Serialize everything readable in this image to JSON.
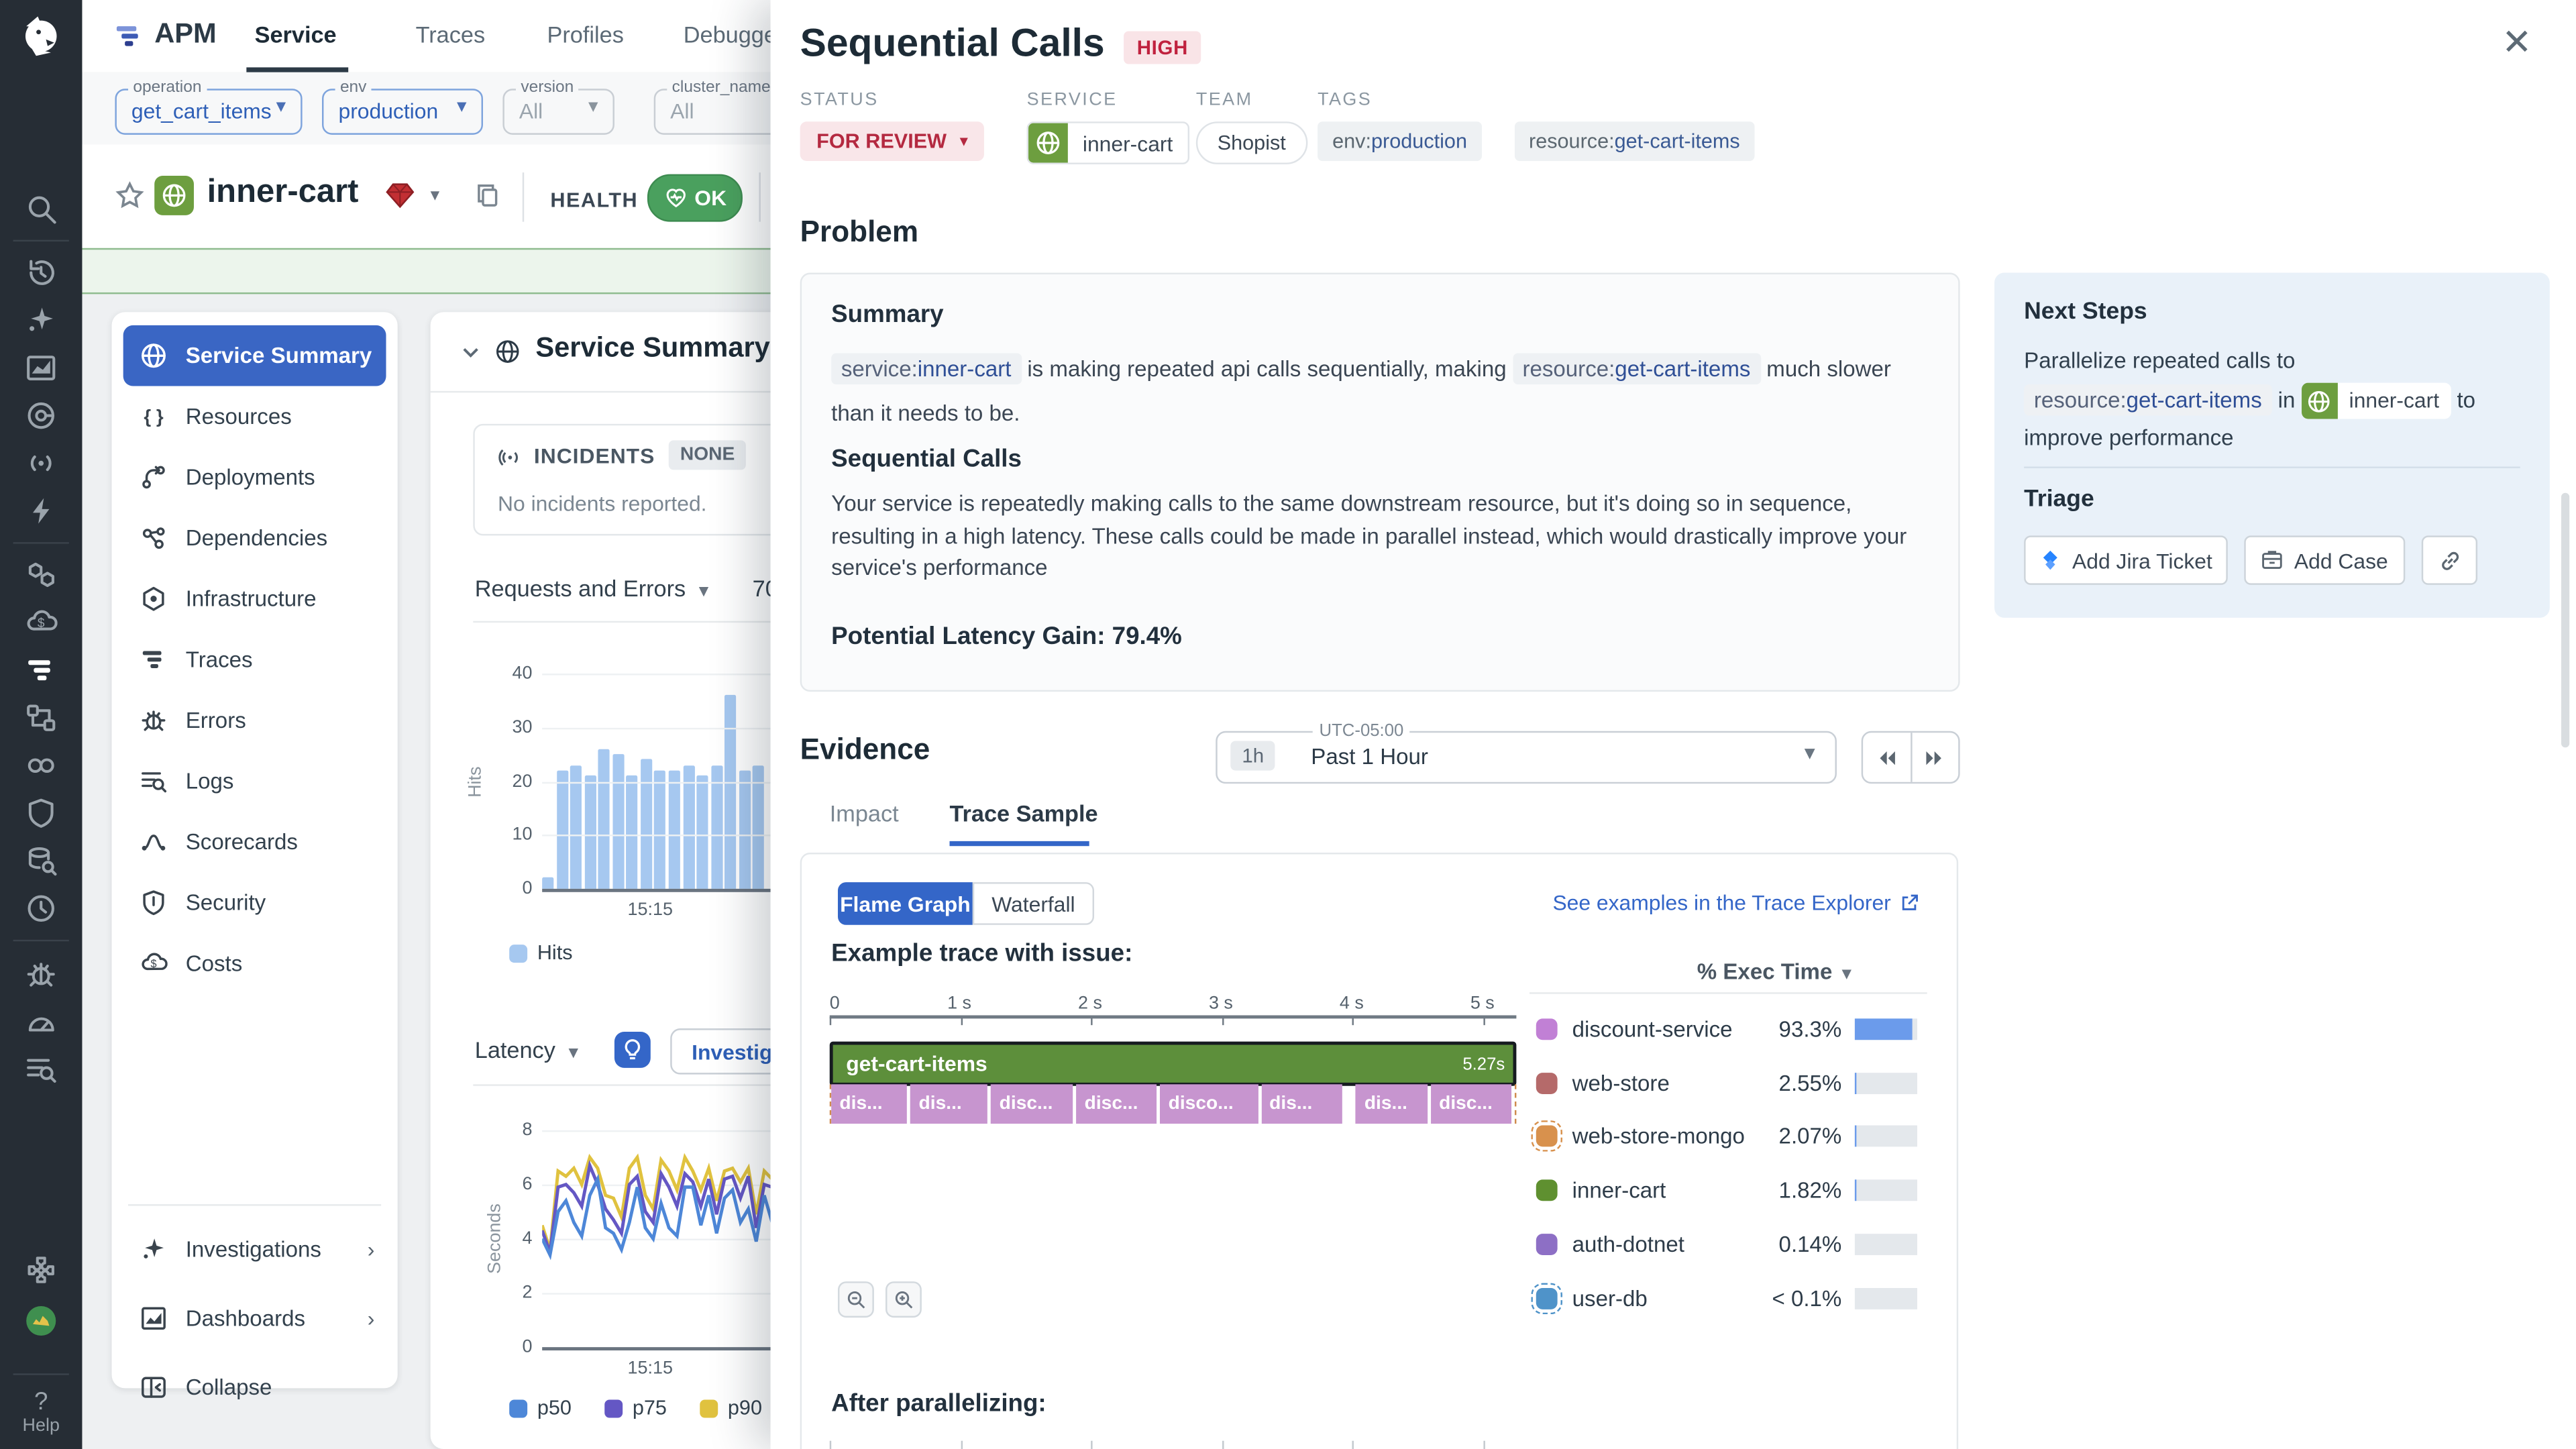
{
  "colors": {
    "accent_blue": "#3466c8",
    "sidebar_active": "#3a66c4",
    "severity_bg": "#f9e4e7",
    "severity_text": "#c0223f",
    "service_green": "#6d9e3f",
    "ok_green": "#4aa05e",
    "banner_green": "#ecf5ec"
  },
  "nav_rail": {
    "icons": [
      "search",
      "history",
      "sparkle",
      "metrics",
      "cicd",
      "rum",
      "bolt",
      "infrastructure",
      "cost",
      "apm",
      "servicemap",
      "synthetics",
      "security",
      "database",
      "servicemgmt",
      "bug",
      "profiling",
      "logs",
      "integrations",
      "avatar"
    ],
    "help_label": "Help"
  },
  "header": {
    "app": "APM",
    "tabs": [
      {
        "label": "Service",
        "active": true
      },
      {
        "label": "Traces",
        "active": false
      },
      {
        "label": "Profiles",
        "active": false
      },
      {
        "label": "Debugger",
        "active": false
      }
    ],
    "filters": [
      {
        "label": "operation",
        "value": "get_cart_items",
        "accent": true,
        "caret": true
      },
      {
        "label": "env",
        "value": "production",
        "accent": true,
        "caret": true
      },
      {
        "label": "version",
        "value": "All",
        "accent": false,
        "caret": true
      },
      {
        "label": "cluster_name",
        "value": "All",
        "accent": false,
        "caret": false
      }
    ]
  },
  "service_header": {
    "name": "inner-cart",
    "health_label": "HEALTH",
    "health_status": "OK"
  },
  "sidebar": {
    "items": [
      {
        "icon": "globe",
        "label": "Service Summary",
        "active": true
      },
      {
        "icon": "braces",
        "label": "Resources",
        "active": false
      },
      {
        "icon": "deploy",
        "label": "Deployments",
        "active": false
      },
      {
        "icon": "deps",
        "label": "Dependencies",
        "active": false
      },
      {
        "icon": "infra",
        "label": "Infrastructure",
        "active": false
      },
      {
        "icon": "traces",
        "label": "Traces",
        "active": false
      },
      {
        "icon": "bug",
        "label": "Errors",
        "active": false
      },
      {
        "icon": "logs",
        "label": "Logs",
        "active": false
      },
      {
        "icon": "score",
        "label": "Scorecards",
        "active": false
      },
      {
        "icon": "shield",
        "label": "Security",
        "active": false
      },
      {
        "icon": "cost",
        "label": "Costs",
        "active": false
      }
    ],
    "footer": [
      {
        "icon": "sparkle",
        "label": "Investigations",
        "chevron": true
      },
      {
        "icon": "dash",
        "label": "Dashboards",
        "chevron": true
      },
      {
        "icon": "collapse",
        "label": "Collapse",
        "chevron": false
      }
    ]
  },
  "summary_panel": {
    "title": "Service Summary",
    "incidents_label": "INCIDENTS",
    "incidents_badge": "NONE",
    "incidents_empty": "No incidents reported.",
    "requests_label": "Requests and Errors",
    "requests_partial": "70",
    "latency_label": "Latency",
    "investigate_label": "Investigate",
    "time_tick": "15:15"
  },
  "modal": {
    "title": "Sequential Calls",
    "severity": "HIGH",
    "meta": {
      "status_label": "STATUS",
      "status_value": "FOR REVIEW",
      "service_label": "SERVICE",
      "service_value": "inner-cart",
      "team_label": "TEAM",
      "team_value": "Shopist",
      "tags_label": "TAGS",
      "tags": [
        {
          "key": "env:",
          "value": "production"
        },
        {
          "key": "resource:",
          "value": "get-cart-items"
        }
      ]
    },
    "problem": {
      "heading": "Problem",
      "summary_title": "Summary",
      "summary_parts": [
        {
          "t": "chip",
          "k": "service:",
          "v": "inner-cart"
        },
        {
          "t": "text",
          "v": " is making repeated api calls sequentially, making "
        },
        {
          "t": "chip",
          "k": "resource:",
          "v": "get-cart-items"
        },
        {
          "t": "text",
          "v": " much slower than it needs to be."
        }
      ],
      "section_title": "Sequential Calls",
      "body": "Your service is repeatedly making calls to the same downstream resource, but it's doing so in sequence, resulting in a high latency. These calls could be made in parallel instead, which would drastically improve your service's performance",
      "gain": "Potential Latency Gain: 79.4%"
    },
    "next_steps": {
      "title": "Next Steps",
      "parts": [
        {
          "t": "text",
          "v": "Parallelize repeated calls to "
        },
        {
          "t": "chip",
          "k": "resource:",
          "v": "get-cart-items"
        },
        {
          "t": "text",
          "v": " in "
        },
        {
          "t": "svc",
          "v": "inner-cart"
        },
        {
          "t": "text",
          "v": " to improve performance"
        }
      ],
      "triage_title": "Triage",
      "jira_label": "Add Jira Ticket",
      "case_label": "Add Case"
    },
    "evidence": {
      "heading": "Evidence",
      "timezone": "UTC-05:00",
      "range_short": "1h",
      "range_label": "Past 1 Hour",
      "tabs": [
        {
          "label": "Impact",
          "active": false
        },
        {
          "label": "Trace Sample",
          "active": true
        }
      ],
      "toggle": [
        {
          "label": "Flame Graph",
          "active": true
        },
        {
          "label": "Waterfall",
          "active": false
        }
      ],
      "explorer_link": "See examples in the Trace Explorer",
      "example_label": "Example trace with issue:",
      "after_label": "After parallelizing:",
      "exec_header": "% Exec Time"
    }
  },
  "chart_data": [
    {
      "type": "bar",
      "title": "Requests and Errors",
      "ylabel": "Hits",
      "ylim": [
        0,
        40
      ],
      "yticks": [
        0,
        10,
        20,
        30,
        40
      ],
      "x_tick_labels": [
        "15:15"
      ],
      "legend": [
        {
          "name": "Hits",
          "color": "#a6c8f0"
        }
      ],
      "series_name": "Hits",
      "values": [
        2,
        22,
        23,
        21,
        26,
        25,
        21,
        24,
        22,
        22,
        23,
        21,
        23,
        36,
        22,
        23
      ]
    },
    {
      "type": "line",
      "title": "Latency",
      "ylabel": "Seconds",
      "ylim": [
        0,
        8
      ],
      "yticks": [
        0,
        2,
        4,
        6,
        8
      ],
      "x_tick_labels": [
        "15:15"
      ],
      "legend_position": "bottom",
      "series": [
        {
          "name": "p50",
          "color": "#4d87d8",
          "values": [
            4.0,
            3.4,
            5.0,
            5.4,
            4.6,
            4.1,
            5.6,
            6.2,
            4.4,
            4.2,
            3.6,
            4.6,
            5.9,
            4.4,
            4.0,
            5.3,
            4.4,
            4.1,
            5.9,
            5.9,
            4.5,
            5.6,
            4.2,
            5.5,
            5.8,
            4.6,
            5.1,
            3.9,
            5.6,
            4.6
          ]
        },
        {
          "name": "p75",
          "color": "#6457c4",
          "values": [
            4.3,
            3.5,
            5.9,
            6.0,
            5.7,
            5.2,
            6.7,
            6.0,
            5.1,
            4.7,
            4.2,
            6.0,
            6.3,
            5.0,
            4.6,
            6.4,
            5.9,
            5.2,
            6.4,
            6.1,
            5.2,
            6.2,
            4.9,
            6.2,
            6.3,
            5.5,
            6.3,
            4.4,
            6.0,
            5.9
          ]
        },
        {
          "name": "p90",
          "color": "#e0c23f",
          "values": [
            4.5,
            3.6,
            6.5,
            6.3,
            6.6,
            6.0,
            7.0,
            6.6,
            5.6,
            5.5,
            4.8,
            6.6,
            7.0,
            5.6,
            5.1,
            6.9,
            6.5,
            5.8,
            7.0,
            6.5,
            5.8,
            6.6,
            5.4,
            6.5,
            6.6,
            6.1,
            6.6,
            4.9,
            6.5,
            6.2
          ]
        }
      ]
    },
    {
      "type": "flame",
      "title": "Example trace with issue:",
      "axis_ticks": [
        "0",
        "1 s",
        "2 s",
        "3 s",
        "4 s",
        "5 s"
      ],
      "root": {
        "label": "get-cart-items",
        "duration": "5.27s",
        "color": "#5d8f3b"
      },
      "children_color": "#c795cf",
      "segments": [
        {
          "label": "dis...",
          "w": 11.5,
          "gap_before": 0
        },
        {
          "label": "dis...",
          "w": 11.7,
          "gap_before": 0
        },
        {
          "label": "disc...",
          "w": 12.4,
          "gap_before": 0
        },
        {
          "label": "disc...",
          "w": 12.2,
          "gap_before": 0
        },
        {
          "label": "disco...",
          "w": 14.8,
          "gap_before": 0
        },
        {
          "label": "dis...",
          "w": 12.4,
          "gap_before": 0
        },
        {
          "label": "dis...",
          "w": 10.8,
          "gap_before": 6
        },
        {
          "label": "disc...",
          "w": 12.2,
          "gap_before": 0
        }
      ]
    },
    {
      "type": "table",
      "title": "% Exec Time",
      "rows": [
        {
          "service": "discount-service",
          "pct": "93.3%",
          "value": 93.3,
          "color": "#c180d5",
          "dashed": false
        },
        {
          "service": "web-store",
          "pct": "2.55%",
          "value": 2.55,
          "color": "#b56a6a",
          "dashed": false
        },
        {
          "service": "web-store-mongo",
          "pct": "2.07%",
          "value": 2.07,
          "color": "#d8914d",
          "dashed": true
        },
        {
          "service": "inner-cart",
          "pct": "1.82%",
          "value": 1.82,
          "color": "#5f9030",
          "dashed": false
        },
        {
          "service": "auth-dotnet",
          "pct": "0.14%",
          "value": 0.14,
          "color": "#8d6fc5",
          "dashed": false
        },
        {
          "service": "user-db",
          "pct": "< 0.1%",
          "value": 0.05,
          "color": "#4f93c9",
          "dashed": true
        }
      ]
    }
  ]
}
